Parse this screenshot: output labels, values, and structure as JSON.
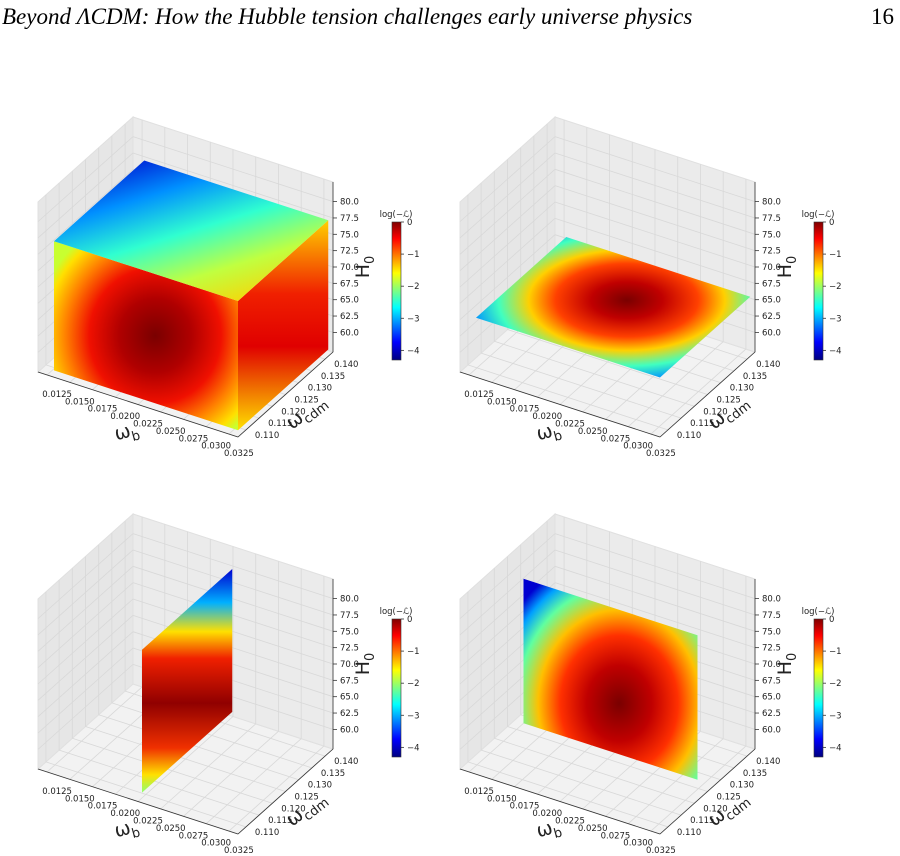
{
  "header": {
    "title": "Beyond ΛCDM: How the Hubble tension challenges early universe physics",
    "page": "16"
  },
  "figure": {
    "type": "surface3d",
    "grid": true,
    "xlabel": {
      "symbol": "ω",
      "subscript": "b"
    },
    "ylabel": {
      "symbol": "ω",
      "subscript": "cdm"
    },
    "zlabel": {
      "symbol": "H",
      "subscript": "0"
    },
    "xlim": [
      0.0115,
      0.0335
    ],
    "ylim": [
      0.107,
      0.143
    ],
    "zlim": [
      57,
      83
    ],
    "xticks": [
      0.0125,
      {
        "value": 0.015,
        "label": "0.0150"
      },
      0.0175,
      {
        "value": 0.02,
        "label": "0.0200"
      },
      0.0225,
      {
        "value": 0.025,
        "label": "0.0250"
      },
      0.0275,
      {
        "value": 0.03,
        "label": "0.0300"
      },
      0.0325
    ],
    "yticks": [
      {
        "value": 0.11,
        "label": "0.110"
      },
      0.115,
      {
        "value": 0.12,
        "label": "0.120"
      },
      0.125,
      {
        "value": 0.13,
        "label": "0.130"
      },
      0.135,
      {
        "value": 0.14,
        "label": "0.140"
      }
    ],
    "zticks": [
      {
        "value": 60,
        "label": "60.0"
      },
      62.5,
      {
        "value": 65,
        "label": "65.0"
      },
      67.5,
      {
        "value": 70,
        "label": "70.0"
      },
      72.5,
      {
        "value": 75,
        "label": "75.0"
      },
      77.5,
      {
        "value": 80,
        "label": "80.0"
      }
    ],
    "colorbar": {
      "label": "log(−ℒ)",
      "colormap": "jet",
      "clim": [
        -4.3,
        0
      ],
      "ticks": [
        0,
        {
          "value": -1,
          "label": "−1"
        },
        {
          "value": -2,
          "label": "−2"
        },
        {
          "value": -3,
          "label": "−3"
        },
        {
          "value": -4,
          "label": "−4"
        }
      ]
    },
    "panels": [
      {
        "view": "cube"
      },
      {
        "view": "z-slice"
      },
      {
        "view": "x-slice"
      },
      {
        "view": "y-slice"
      }
    ]
  }
}
